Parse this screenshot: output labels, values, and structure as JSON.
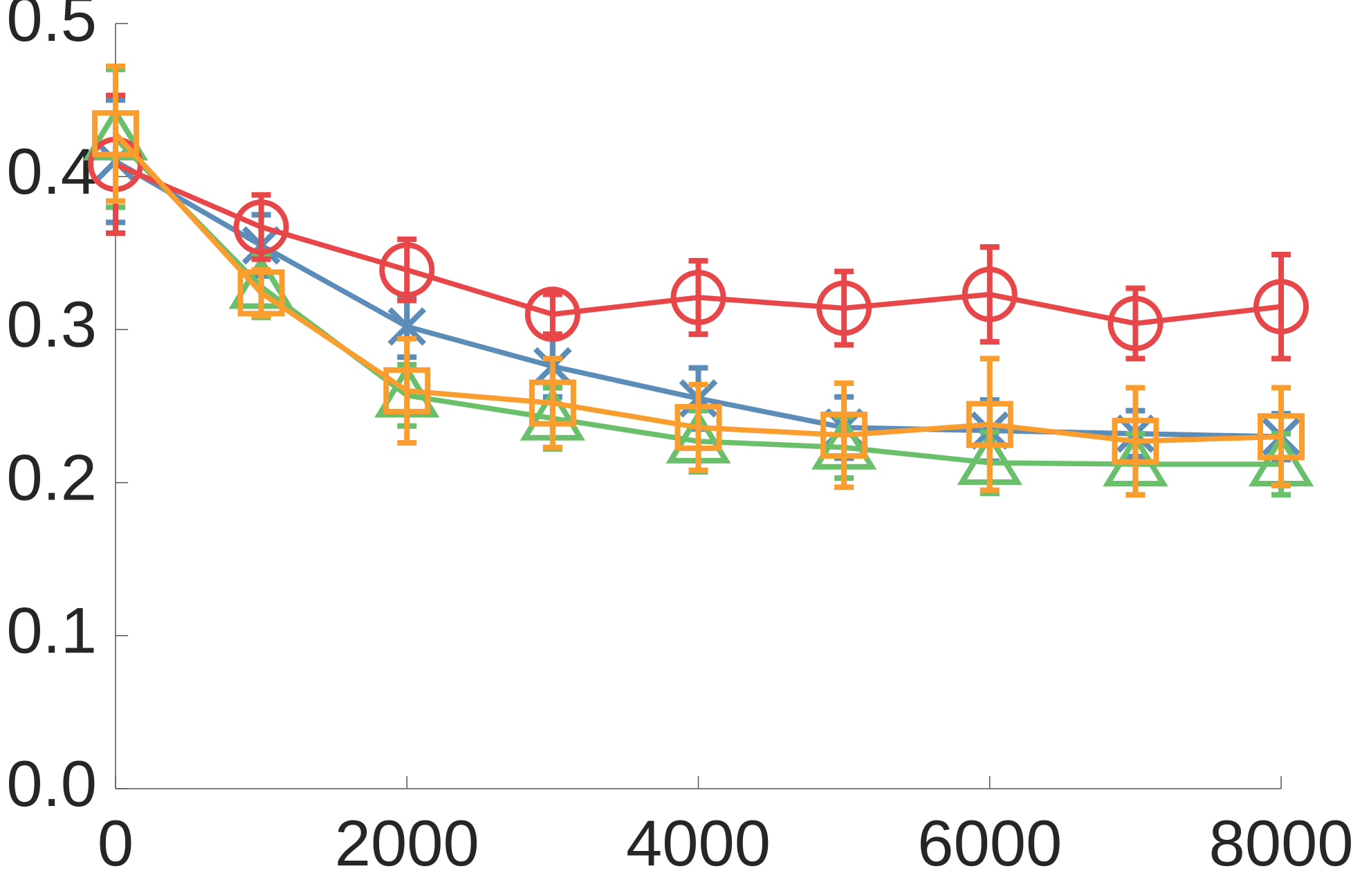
{
  "chart_data": {
    "type": "line",
    "x": [
      0,
      1000,
      2000,
      3000,
      4000,
      5000,
      6000,
      7000,
      8000
    ],
    "series": [
      {
        "color": "#5b8db8",
        "marker": "x",
        "values": [
          0.41,
          0.355,
          0.302,
          0.276,
          0.255,
          0.236,
          0.234,
          0.232,
          0.23
        ],
        "errors": [
          0.04,
          0.02,
          0.02,
          0.02,
          0.02,
          0.02,
          0.02,
          0.015,
          0.015
        ]
      },
      {
        "color": "#6abf6a",
        "marker": "^",
        "values": [
          0.425,
          0.328,
          0.257,
          0.242,
          0.227,
          0.223,
          0.213,
          0.212,
          0.212
        ],
        "errors": [
          0.045,
          0.02,
          0.02,
          0.02,
          0.02,
          0.02,
          0.02,
          0.02,
          0.02
        ]
      },
      {
        "color": "#e8474a",
        "marker": "o",
        "values": [
          0.408,
          0.367,
          0.339,
          0.31,
          0.321,
          0.314,
          0.323,
          0.304,
          0.315
        ],
        "errors": [
          0.045,
          0.021,
          0.02,
          0.013,
          0.024,
          0.024,
          0.031,
          0.023,
          0.034
        ]
      },
      {
        "color": "#f99d2f",
        "marker": "s",
        "values": [
          0.428,
          0.324,
          0.26,
          0.252,
          0.236,
          0.231,
          0.238,
          0.227,
          0.23
        ],
        "errors": [
          0.044,
          0.015,
          0.034,
          0.029,
          0.028,
          0.034,
          0.043,
          0.035,
          0.032
        ]
      }
    ],
    "xlim": [
      0,
      8000
    ],
    "xticks": [
      0,
      2000,
      4000,
      6000,
      8000
    ],
    "ylim": [
      0,
      0.5
    ],
    "yticks": [
      {
        "value": 0,
        "label": "0.0"
      },
      0.1,
      0.2,
      0.3,
      0.4,
      0.5
    ]
  }
}
